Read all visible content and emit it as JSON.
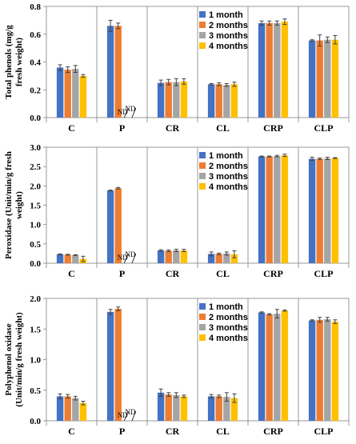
{
  "colors": {
    "1 month": "#4472C4",
    "2 months": "#ED7D31",
    "3 months": "#A5A5A5",
    "4 months": "#FFC000",
    "error_bar": "#404040",
    "grid": "#808080",
    "axis": "#000000"
  },
  "chart_data": [
    {
      "type": "bar",
      "title": "",
      "xlabel": "",
      "ylabel": "Total phenols (mg/g fresh weight)",
      "ylim": [
        0,
        0.8
      ],
      "yticks": [
        "0.0",
        "0.2",
        "0.4",
        "0.6",
        "0.8"
      ],
      "categories": [
        "C",
        "P",
        "CR",
        "CL",
        "CRP",
        "CLP"
      ],
      "legend": {
        "position": "top-right",
        "entries": [
          "1 month",
          "2 months",
          "3 months",
          "4 months"
        ]
      },
      "grid": "vertical separators between groups",
      "series": [
        {
          "name": "1 month",
          "values": [
            0.36,
            0.66,
            0.25,
            0.24,
            0.68,
            0.555
          ],
          "errors": [
            0.02,
            0.04,
            0.02,
            0.005,
            0.015,
            0.005
          ]
        },
        {
          "name": "2 months",
          "values": [
            0.345,
            0.66,
            0.255,
            0.24,
            0.68,
            0.555
          ],
          "errors": [
            0.02,
            0.02,
            0.02,
            0.01,
            0.015,
            0.04
          ]
        },
        {
          "name": "3 months",
          "values": [
            0.35,
            null,
            0.255,
            0.235,
            0.68,
            0.56
          ],
          "errors": [
            0.025,
            null,
            0.025,
            0.01,
            0.015,
            0.02
          ]
        },
        {
          "name": "4 months",
          "values": [
            0.3,
            null,
            0.26,
            0.24,
            0.69,
            0.56
          ],
          "errors": [
            0.01,
            null,
            0.02,
            0.015,
            0.02,
            0.03
          ]
        }
      ],
      "annotations": [
        {
          "category": "P",
          "series": "3 months",
          "text": "ND"
        },
        {
          "category": "P",
          "series": "4 months",
          "text": "ND"
        }
      ]
    },
    {
      "type": "bar",
      "title": "",
      "xlabel": "",
      "ylabel": "Peroxidase (Unit/min/g fresh weight)",
      "ylim": [
        0,
        3.0
      ],
      "yticks": [
        "0.0",
        "0.5",
        "1.0",
        "1.5",
        "2.0",
        "2.5",
        "3.0"
      ],
      "categories": [
        "C",
        "P",
        "CR",
        "CL",
        "CRP",
        "CLP"
      ],
      "legend": {
        "position": "top-right",
        "entries": [
          "1 month",
          "2 months",
          "3 months",
          "4 months"
        ]
      },
      "grid": "vertical separators between groups",
      "series": [
        {
          "name": "1 month",
          "values": [
            0.23,
            1.88,
            0.33,
            0.24,
            2.76,
            2.7
          ],
          "errors": [
            0.01,
            0.01,
            0.02,
            0.05,
            0.01,
            0.04
          ]
        },
        {
          "name": "2 months",
          "values": [
            0.22,
            1.94,
            0.32,
            0.24,
            2.76,
            2.7
          ],
          "errors": [
            0.01,
            0.02,
            0.02,
            0.02,
            0.01,
            0.02
          ]
        },
        {
          "name": "3 months",
          "values": [
            0.21,
            null,
            0.33,
            0.25,
            2.77,
            2.71
          ],
          "errors": [
            0.01,
            null,
            0.03,
            0.04,
            0.02,
            0.03
          ]
        },
        {
          "name": "4 months",
          "values": [
            0.11,
            null,
            0.33,
            0.23,
            2.79,
            2.72
          ],
          "errors": [
            0.07,
            null,
            0.03,
            0.09,
            0.03,
            0.01
          ]
        }
      ],
      "annotations": [
        {
          "category": "P",
          "series": "3 months",
          "text": "ND"
        },
        {
          "category": "P",
          "series": "4 months",
          "text": "ND"
        }
      ]
    },
    {
      "type": "bar",
      "title": "",
      "xlabel": "",
      "ylabel": "Polyphenol oxidase (Unit/min/g fresh weight)",
      "ylim": [
        0,
        2.0
      ],
      "yticks": [
        "0.0",
        "0.5",
        "1.0",
        "1.5",
        "2.0"
      ],
      "categories": [
        "C",
        "P",
        "CR",
        "CL",
        "CRP",
        "CLP"
      ],
      "legend": {
        "position": "top-right",
        "entries": [
          "1 month",
          "2 months",
          "3 months",
          "4 months"
        ]
      },
      "grid": "vertical separators between groups",
      "series": [
        {
          "name": "1 month",
          "values": [
            0.4,
            1.78,
            0.46,
            0.4,
            1.77,
            1.64
          ],
          "errors": [
            0.04,
            0.04,
            0.06,
            0.03,
            0.01,
            0.01
          ]
        },
        {
          "name": "2 months",
          "values": [
            0.4,
            1.83,
            0.43,
            0.4,
            1.74,
            1.65
          ],
          "errors": [
            0.03,
            0.03,
            0.03,
            0.02,
            0.01,
            0.04
          ]
        },
        {
          "name": "3 months",
          "values": [
            0.37,
            null,
            0.42,
            0.39,
            1.75,
            1.66
          ],
          "errors": [
            0.03,
            null,
            0.04,
            0.07,
            0.07,
            0.03
          ]
        },
        {
          "name": "4 months",
          "values": [
            0.29,
            null,
            0.4,
            0.37,
            1.8,
            1.62
          ],
          "errors": [
            0.03,
            null,
            0.02,
            0.07,
            0.01,
            0.03
          ]
        }
      ],
      "annotations": [
        {
          "category": "P",
          "series": "3 months",
          "text": "ND"
        },
        {
          "category": "P",
          "series": "4 months",
          "text": "ND"
        }
      ]
    }
  ]
}
